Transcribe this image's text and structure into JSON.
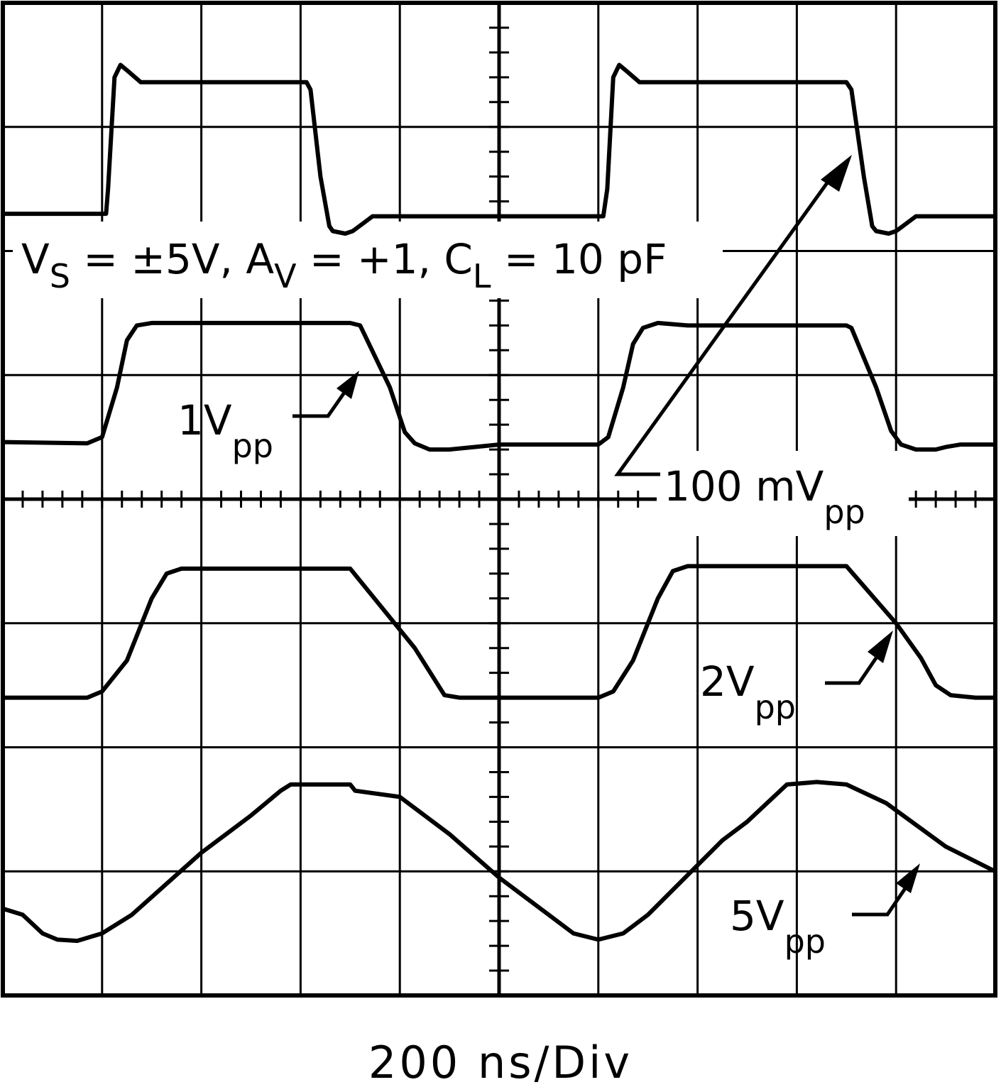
{
  "chart_data": {
    "type": "line",
    "title": "",
    "conditions": {
      "vs_main": "V",
      "vs_sub": "S",
      "vs_value": " = ±5V, ",
      "av_main": "A",
      "av_sub": "V",
      "av_value": " = +1, ",
      "cl_main": "C",
      "cl_sub": "L",
      "cl_value": " = 10 pF"
    },
    "xlabel": "200 ns/Div",
    "xlim": [
      0,
      2000
    ],
    "x_unit": "ns",
    "grid": {
      "x_divisions": 10,
      "y_divisions": 8,
      "visible": true
    },
    "series": [
      {
        "name": "100 mV",
        "label_main": "100 mV",
        "label_sub": "pp",
        "points": [
          [
            0,
            2.3
          ],
          [
            208,
            2.3
          ],
          [
            212,
            2.5
          ],
          [
            225,
            3.4
          ],
          [
            237,
            3.5
          ],
          [
            252,
            3.45
          ],
          [
            278,
            3.36
          ],
          [
            500,
            3.36
          ],
          [
            612,
            3.36
          ],
          [
            620,
            3.3
          ],
          [
            640,
            2.6
          ],
          [
            658,
            2.2
          ],
          [
            665,
            2.16
          ],
          [
            690,
            2.14
          ],
          [
            705,
            2.16
          ],
          [
            725,
            2.22
          ],
          [
            745,
            2.28
          ],
          [
            1000,
            2.28
          ],
          [
            1210,
            2.28
          ],
          [
            1218,
            2.5
          ],
          [
            1230,
            3.4
          ],
          [
            1242,
            3.5
          ],
          [
            1257,
            3.45
          ],
          [
            1283,
            3.36
          ],
          [
            1500,
            3.36
          ],
          [
            1700,
            3.36
          ],
          [
            1710,
            3.3
          ],
          [
            1735,
            2.6
          ],
          [
            1752,
            2.2
          ],
          [
            1760,
            2.16
          ],
          [
            1785,
            2.14
          ],
          [
            1800,
            2.16
          ],
          [
            1820,
            2.22
          ],
          [
            1840,
            2.28
          ],
          [
            2000,
            2.28
          ]
        ]
      },
      {
        "name": "1V",
        "label_main": "1V",
        "label_sub": "pp",
        "points": [
          [
            0,
            0.46
          ],
          [
            170,
            0.45
          ],
          [
            200,
            0.5
          ],
          [
            230,
            0.9
          ],
          [
            250,
            1.28
          ],
          [
            270,
            1.4
          ],
          [
            300,
            1.42
          ],
          [
            400,
            1.42
          ],
          [
            500,
            1.42
          ],
          [
            600,
            1.42
          ],
          [
            700,
            1.42
          ],
          [
            720,
            1.4
          ],
          [
            780,
            0.9
          ],
          [
            810,
            0.54
          ],
          [
            830,
            0.45
          ],
          [
            860,
            0.4
          ],
          [
            900,
            0.4
          ],
          [
            950,
            0.42
          ],
          [
            1000,
            0.44
          ],
          [
            1200,
            0.44
          ],
          [
            1220,
            0.5
          ],
          [
            1250,
            0.9
          ],
          [
            1270,
            1.25
          ],
          [
            1290,
            1.38
          ],
          [
            1320,
            1.42
          ],
          [
            1380,
            1.4
          ],
          [
            1500,
            1.4
          ],
          [
            1700,
            1.4
          ],
          [
            1710,
            1.38
          ],
          [
            1760,
            0.9
          ],
          [
            1790,
            0.55
          ],
          [
            1810,
            0.44
          ],
          [
            1840,
            0.4
          ],
          [
            1880,
            0.4
          ],
          [
            1900,
            0.42
          ],
          [
            1930,
            0.44
          ],
          [
            2000,
            0.44
          ]
        ]
      },
      {
        "name": "2V",
        "label_main": "2V",
        "label_sub": "pp",
        "points": [
          [
            0,
            -1.6
          ],
          [
            170,
            -1.6
          ],
          [
            200,
            -1.55
          ],
          [
            250,
            -1.3
          ],
          [
            300,
            -0.8
          ],
          [
            330,
            -0.6
          ],
          [
            360,
            -0.56
          ],
          [
            500,
            -0.56
          ],
          [
            700,
            -0.56
          ],
          [
            830,
            -1.2
          ],
          [
            890,
            -1.58
          ],
          [
            920,
            -1.6
          ],
          [
            1000,
            -1.6
          ],
          [
            1200,
            -1.6
          ],
          [
            1230,
            -1.55
          ],
          [
            1270,
            -1.3
          ],
          [
            1320,
            -0.8
          ],
          [
            1350,
            -0.58
          ],
          [
            1380,
            -0.54
          ],
          [
            1500,
            -0.54
          ],
          [
            1700,
            -0.54
          ],
          [
            1800,
            -1.0
          ],
          [
            1850,
            -1.28
          ],
          [
            1880,
            -1.5
          ],
          [
            1910,
            -1.58
          ],
          [
            1960,
            -1.6
          ],
          [
            2000,
            -1.6
          ]
        ]
      },
      {
        "name": "5V",
        "label_main": "5V",
        "label_sub": "pp",
        "points": [
          [
            0,
            -3.3
          ],
          [
            40,
            -3.35
          ],
          [
            80,
            -3.5
          ],
          [
            110,
            -3.55
          ],
          [
            150,
            -3.56
          ],
          [
            200,
            -3.5
          ],
          [
            260,
            -3.35
          ],
          [
            400,
            -2.85
          ],
          [
            450,
            -2.7
          ],
          [
            500,
            -2.55
          ],
          [
            560,
            -2.35
          ],
          [
            580,
            -2.3
          ],
          [
            700,
            -2.3
          ],
          [
            710,
            -2.35
          ],
          [
            800,
            -2.4
          ],
          [
            900,
            -2.7
          ],
          [
            1000,
            -3.05
          ],
          [
            1100,
            -3.35
          ],
          [
            1150,
            -3.5
          ],
          [
            1200,
            -3.55
          ],
          [
            1250,
            -3.5
          ],
          [
            1300,
            -3.35
          ],
          [
            1400,
            -2.95
          ],
          [
            1450,
            -2.75
          ],
          [
            1500,
            -2.6
          ],
          [
            1580,
            -2.3
          ],
          [
            1640,
            -2.28
          ],
          [
            1700,
            -2.3
          ],
          [
            1780,
            -2.45
          ],
          [
            1900,
            -2.8
          ],
          [
            2000,
            -3.0
          ]
        ]
      }
    ]
  }
}
